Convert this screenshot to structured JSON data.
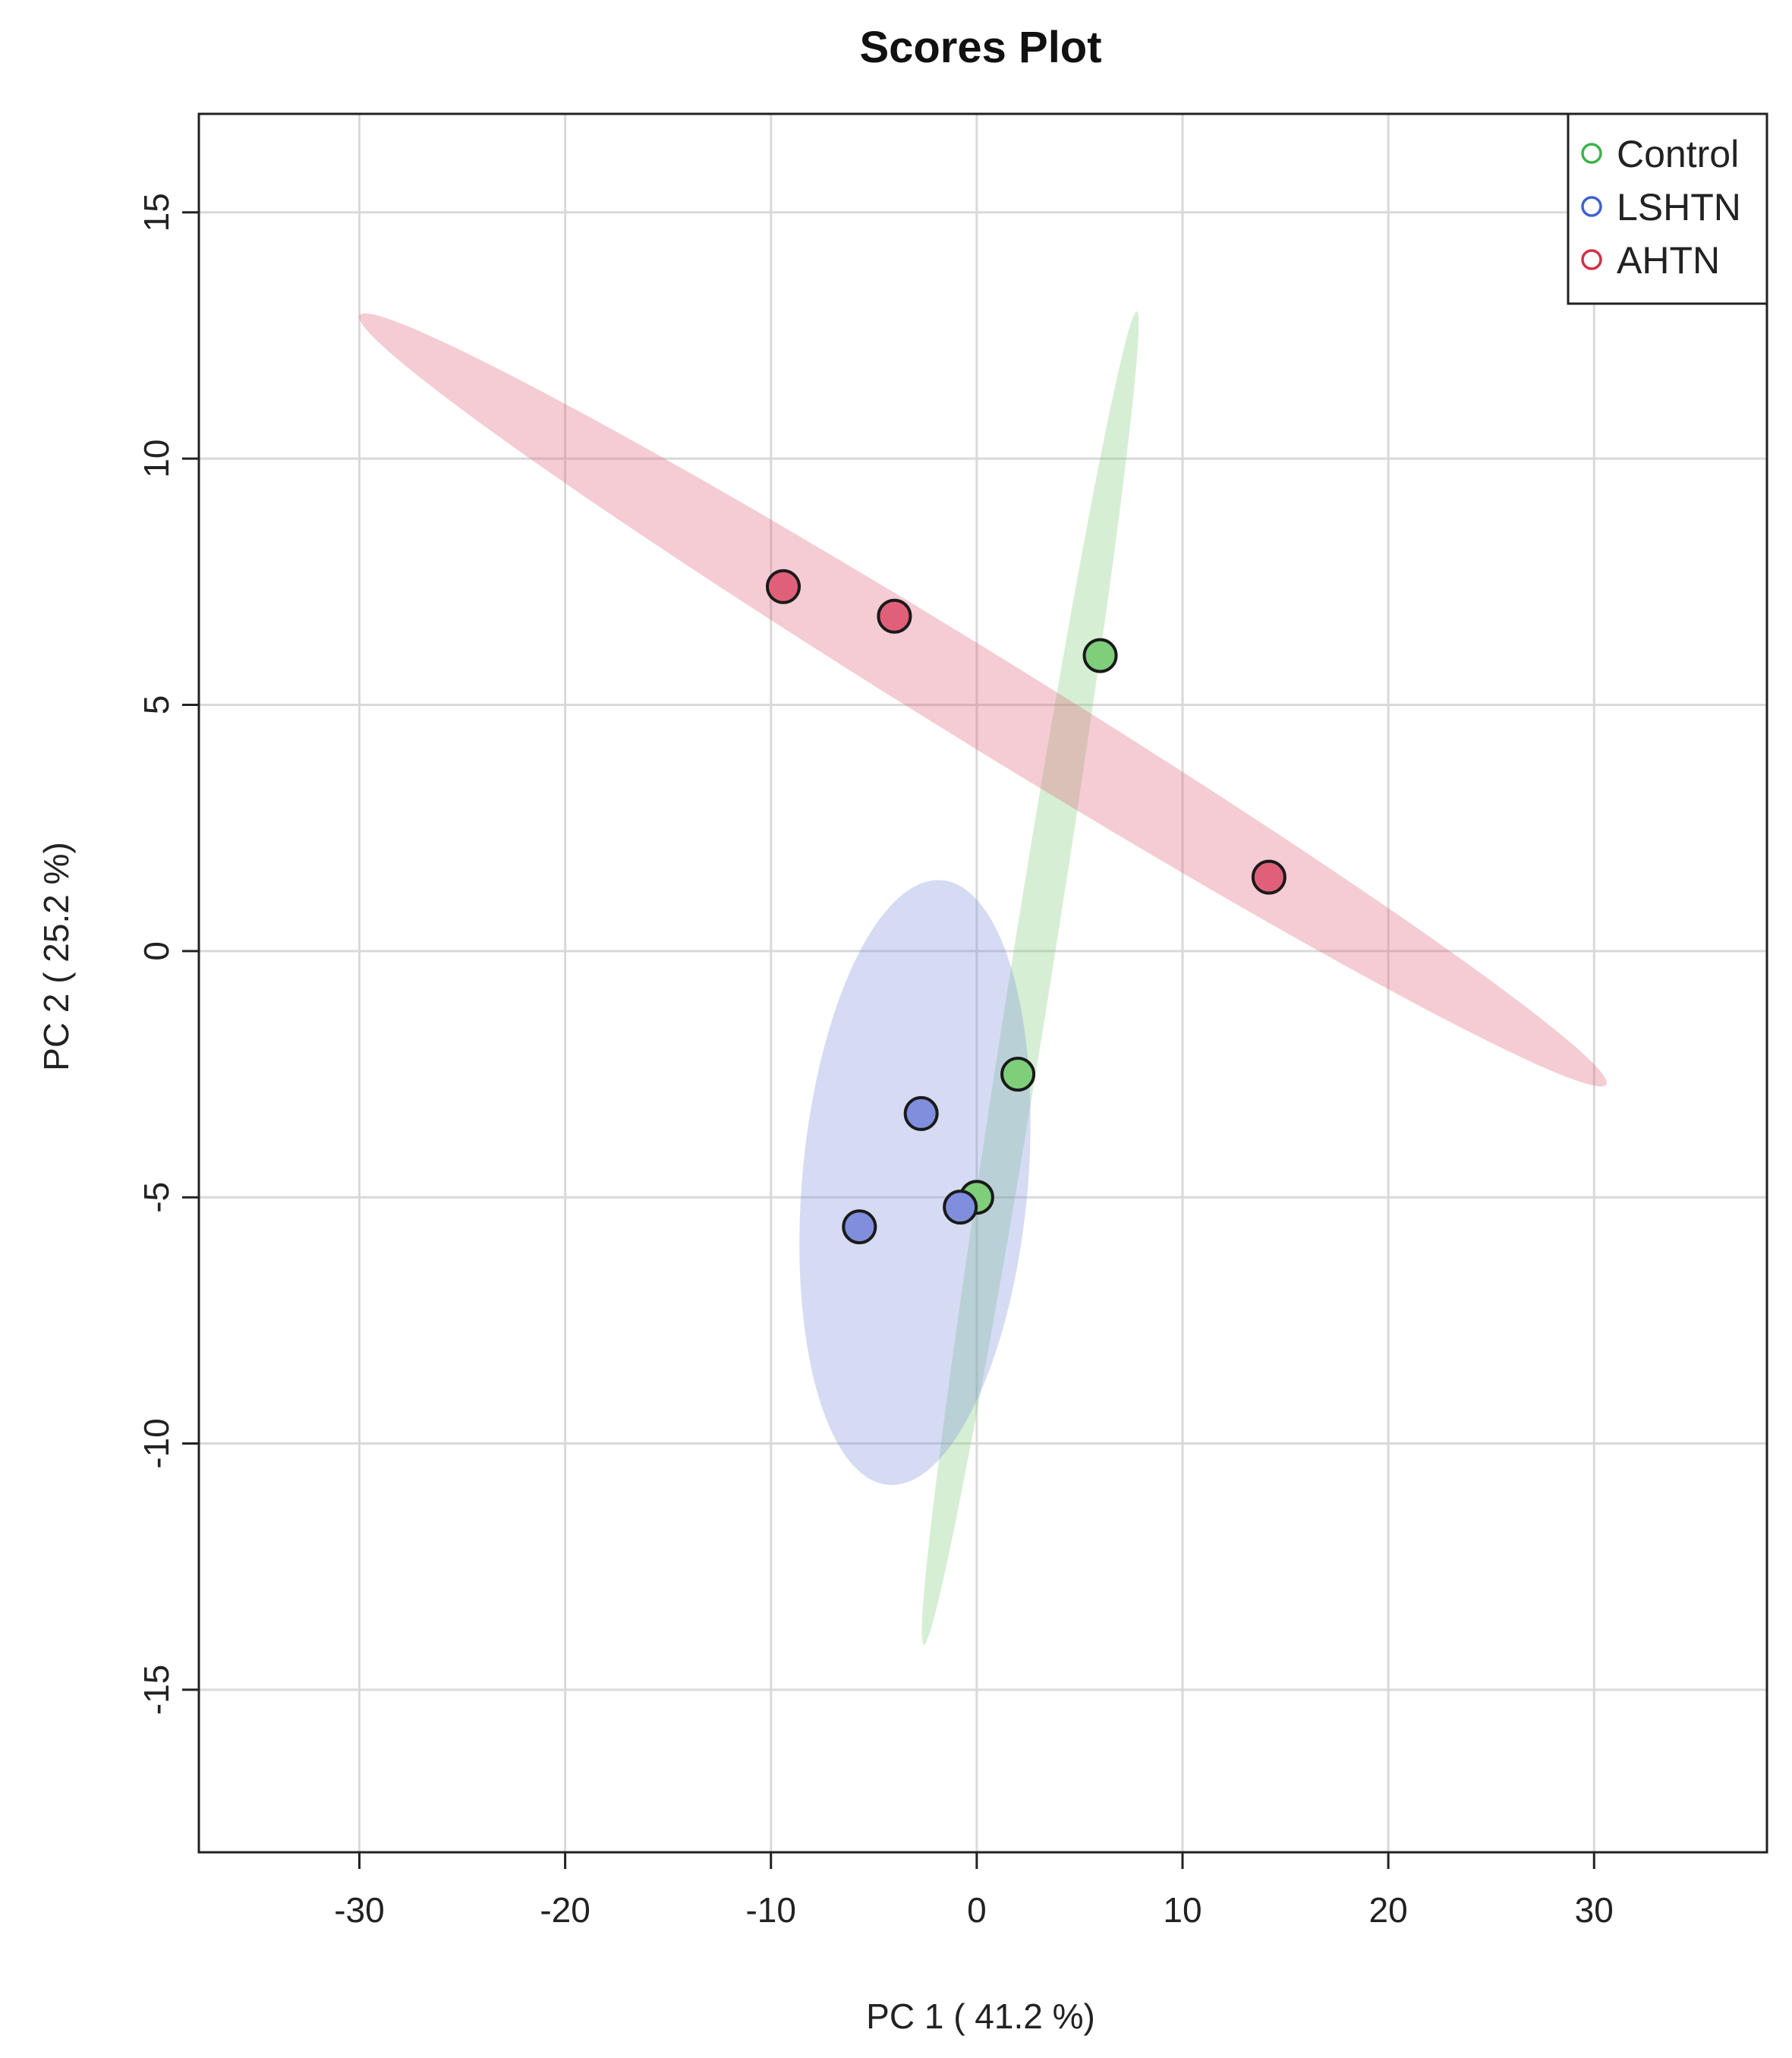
{
  "chart_data": {
    "type": "scatter",
    "title": "Scores Plot",
    "xlabel": "PC 1 ( 41.2 %)",
    "ylabel": "PC 2 ( 25.2 %)",
    "xlim": [
      -37.8,
      38.4
    ],
    "ylim": [
      -18.3,
      17.0
    ],
    "xticks": [
      -30,
      -20,
      -10,
      0,
      10,
      20,
      30
    ],
    "yticks": [
      -15,
      -10,
      -5,
      0,
      5,
      10,
      15
    ],
    "grid": true,
    "legend_position": "top-right",
    "series": [
      {
        "name": "Control",
        "color": "#3cb44b",
        "fill": "#7fce7a",
        "points": [
          [
            6.0,
            6.0
          ],
          [
            2.0,
            -2.5
          ],
          [
            0.0,
            -5.0
          ]
        ],
        "ellipse": {
          "center": [
            2.6,
            -0.55
          ],
          "semi_major": 14.5,
          "semi_minor": 0.95,
          "angle_deg": 69
        }
      },
      {
        "name": "LSHTN",
        "color": "#4060d0",
        "fill": "#7f8fdd",
        "points": [
          [
            -2.7,
            -3.3
          ],
          [
            -0.8,
            -5.2
          ],
          [
            -5.7,
            -5.6
          ]
        ],
        "ellipse": {
          "center": [
            -3.0,
            -4.7
          ],
          "semi_major": 6.5,
          "semi_minor": 5.2,
          "angle_deg": 57
        }
      },
      {
        "name": "AHTN",
        "color": "#d0304a",
        "fill": "#e0607a",
        "points": [
          [
            -9.4,
            7.4
          ],
          [
            -4.0,
            6.8
          ],
          [
            14.2,
            1.5
          ]
        ],
        "ellipse": {
          "center": [
            0.3,
            5.1
          ],
          "semi_major": 31.3,
          "semi_minor": 1.05,
          "angle_deg": -14.4
        }
      }
    ]
  }
}
